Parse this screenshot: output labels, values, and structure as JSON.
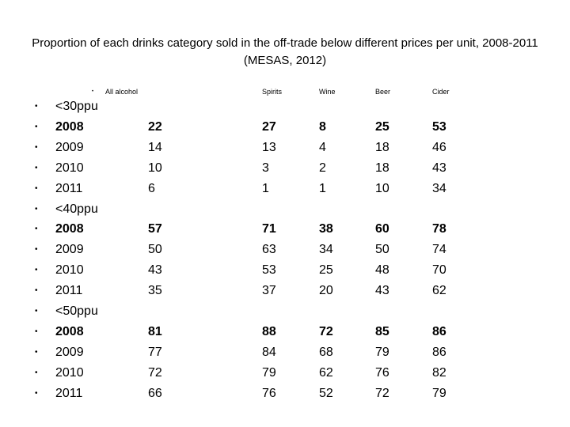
{
  "title": "Proportion of each drinks category sold in the off-trade below different prices per unit, 2008-2011 (MESAS, 2012)",
  "header": {
    "bullet": "•",
    "columns": [
      "All alcohol",
      "Spirits",
      "Wine",
      "Beer",
      "Cider"
    ]
  },
  "bullet_char": "•",
  "rows": [
    {
      "label": "<30ppu",
      "values": [
        "",
        "",
        "",
        "",
        ""
      ],
      "bold": false
    },
    {
      "label": "2008",
      "values": [
        "22",
        "27",
        "8",
        "25",
        "53"
      ],
      "bold": true
    },
    {
      "label": "2009",
      "values": [
        "14",
        "13",
        "4",
        "18",
        "46"
      ],
      "bold": false
    },
    {
      "label": "2010",
      "values": [
        "10",
        "3",
        "2",
        "18",
        "43"
      ],
      "bold": false
    },
    {
      "label": "2011",
      "values": [
        "6",
        "1",
        "1",
        "10",
        "34"
      ],
      "bold": false
    },
    {
      "label": "<40ppu",
      "values": [
        "",
        "",
        "",
        "",
        ""
      ],
      "bold": false
    },
    {
      "label": "2008",
      "values": [
        "57",
        "71",
        "38",
        "60",
        "78"
      ],
      "bold": true
    },
    {
      "label": "2009",
      "values": [
        "50",
        "63",
        "34",
        "50",
        "74"
      ],
      "bold": false
    },
    {
      "label": "2010",
      "values": [
        "43",
        "53",
        "25",
        "48",
        "70"
      ],
      "bold": false
    },
    {
      "label": "2011",
      "values": [
        "35",
        "37",
        "20",
        "43",
        "62"
      ],
      "bold": false
    },
    {
      "label": "<50ppu",
      "values": [
        "",
        "",
        "",
        "",
        ""
      ],
      "bold": false
    },
    {
      "label": "2008",
      "values": [
        "81",
        "88",
        "72",
        "85",
        "86"
      ],
      "bold": true
    },
    {
      "label": "2009",
      "values": [
        "77",
        "84",
        "68",
        "79",
        "86"
      ],
      "bold": false
    },
    {
      "label": "2010",
      "values": [
        "72",
        "79",
        "62",
        "76",
        "82"
      ],
      "bold": false
    },
    {
      "label": "2011",
      "values": [
        "66",
        "76",
        "52",
        "72",
        "79"
      ],
      "bold": false
    }
  ]
}
